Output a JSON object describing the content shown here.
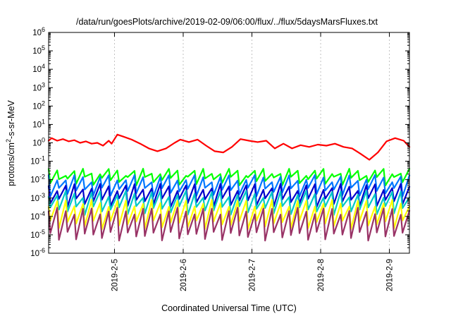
{
  "chart_data": {
    "type": "line",
    "title": "/data/run/goesPlots/archive/2019-02-09/06:00/flux/../flux/5daysMarsFluxes.txt",
    "xlabel": "Coordinated Universal Time (UTC)",
    "ylabel": "protons/cm2-s-sr-MeV",
    "ylabel_base": "protons/cm",
    "ylabel_sup": "2",
    "ylabel_rest": "-s-sr-MeV",
    "xlim": [
      "2019-02-04 01:00",
      "2019-02-09 07:00"
    ],
    "ylim": [
      1e-06,
      1000000.0
    ],
    "yscale": "log",
    "grid": true,
    "x_ticks": [
      {
        "value": "2019-02-05 00:00",
        "label": "2019-2-5"
      },
      {
        "value": "2019-02-06 00:00",
        "label": "2019-2-6"
      },
      {
        "value": "2019-02-07 00:00",
        "label": "2019-2-7"
      },
      {
        "value": "2019-02-08 00:00",
        "label": "2019-2-8"
      },
      {
        "value": "2019-02-09 00:00",
        "label": "2019-2-9"
      }
    ],
    "y_ticks": [
      {
        "base": "10",
        "exp": "-6",
        "value": 1e-06
      },
      {
        "base": "10",
        "exp": "-5",
        "value": 1e-05
      },
      {
        "base": "10",
        "exp": "-4",
        "value": 0.0001
      },
      {
        "base": "10",
        "exp": "-3",
        "value": 0.001
      },
      {
        "base": "10",
        "exp": "-2",
        "value": 0.01
      },
      {
        "base": "10",
        "exp": "-1",
        "value": 0.1
      },
      {
        "base": "10",
        "exp": "0",
        "value": 1
      },
      {
        "base": "10",
        "exp": "1",
        "value": 10
      },
      {
        "base": "10",
        "exp": "2",
        "value": 100
      },
      {
        "base": "10",
        "exp": "3",
        "value": 1000
      },
      {
        "base": "10",
        "exp": "4",
        "value": 10000
      },
      {
        "base": "10",
        "exp": "5",
        "value": 100000
      },
      {
        "base": "10",
        "exp": "6",
        "value": 1000000
      }
    ],
    "series": [
      {
        "color": "#ff0000",
        "x": [
          "2019-02-04 01:00",
          "2019-02-04 02:00",
          "2019-02-04 04:00",
          "2019-02-04 06:00",
          "2019-02-04 08:00",
          "2019-02-04 10:00",
          "2019-02-04 12:00",
          "2019-02-04 14:00",
          "2019-02-04 16:00",
          "2019-02-04 18:00",
          "2019-02-04 20:00",
          "2019-02-04 22:00",
          "2019-02-04 23:00",
          "2019-02-05 01:00",
          "2019-02-05 03:00",
          "2019-02-05 06:00",
          "2019-02-05 09:00",
          "2019-02-05 12:00",
          "2019-02-05 15:00",
          "2019-02-05 18:00",
          "2019-02-05 21:00",
          "2019-02-05 23:00",
          "2019-02-06 02:00",
          "2019-02-06 05:00",
          "2019-02-06 08:00",
          "2019-02-06 11:00",
          "2019-02-06 14:00",
          "2019-02-06 17:00",
          "2019-02-06 20:00",
          "2019-02-06 23:00",
          "2019-02-07 02:00",
          "2019-02-07 05:00",
          "2019-02-07 08:00",
          "2019-02-07 11:00",
          "2019-02-07 14:00",
          "2019-02-07 17:00",
          "2019-02-07 20:00",
          "2019-02-07 23:00",
          "2019-02-08 02:00",
          "2019-02-08 05:00",
          "2019-02-08 08:00",
          "2019-02-08 11:00",
          "2019-02-08 14:00",
          "2019-02-08 17:00",
          "2019-02-08 20:00",
          "2019-02-08 23:00",
          "2019-02-09 02:00",
          "2019-02-09 05:00",
          "2019-02-09 07:00"
        ],
        "values": [
          1.3,
          1.8,
          1.3,
          1.6,
          1.2,
          1.4,
          1.0,
          1.2,
          0.9,
          1.0,
          0.7,
          1.3,
          0.9,
          2.8,
          2.2,
          1.5,
          0.9,
          0.5,
          0.35,
          0.5,
          1.0,
          1.5,
          1.1,
          1.5,
          0.7,
          0.35,
          0.3,
          0.6,
          1.6,
          1.3,
          1.1,
          1.3,
          0.5,
          0.9,
          0.5,
          0.75,
          0.6,
          0.8,
          0.7,
          0.9,
          0.6,
          0.5,
          0.25,
          0.12,
          0.3,
          1.2,
          1.8,
          1.3,
          0.6
        ]
      },
      {
        "color": "#00ff00",
        "base": 0.012,
        "peak": 0.04,
        "trough": 0.012
      },
      {
        "color": "#0077ff",
        "base": 0.004,
        "peak": 0.018,
        "trough": 0.003
      },
      {
        "color": "#0000cc",
        "base": 0.0012,
        "peak": 0.006,
        "trough": 0.0008
      },
      {
        "color": "#00c8c8",
        "base": 0.0004,
        "peak": 0.0025,
        "trough": 0.0003
      },
      {
        "color": "#ffff00",
        "base": 8e-05,
        "peak": 0.0008,
        "trough": 5e-05
      },
      {
        "color": "#993366",
        "base": 2e-05,
        "peak": 0.0003,
        "trough": 1.2e-05
      }
    ]
  }
}
